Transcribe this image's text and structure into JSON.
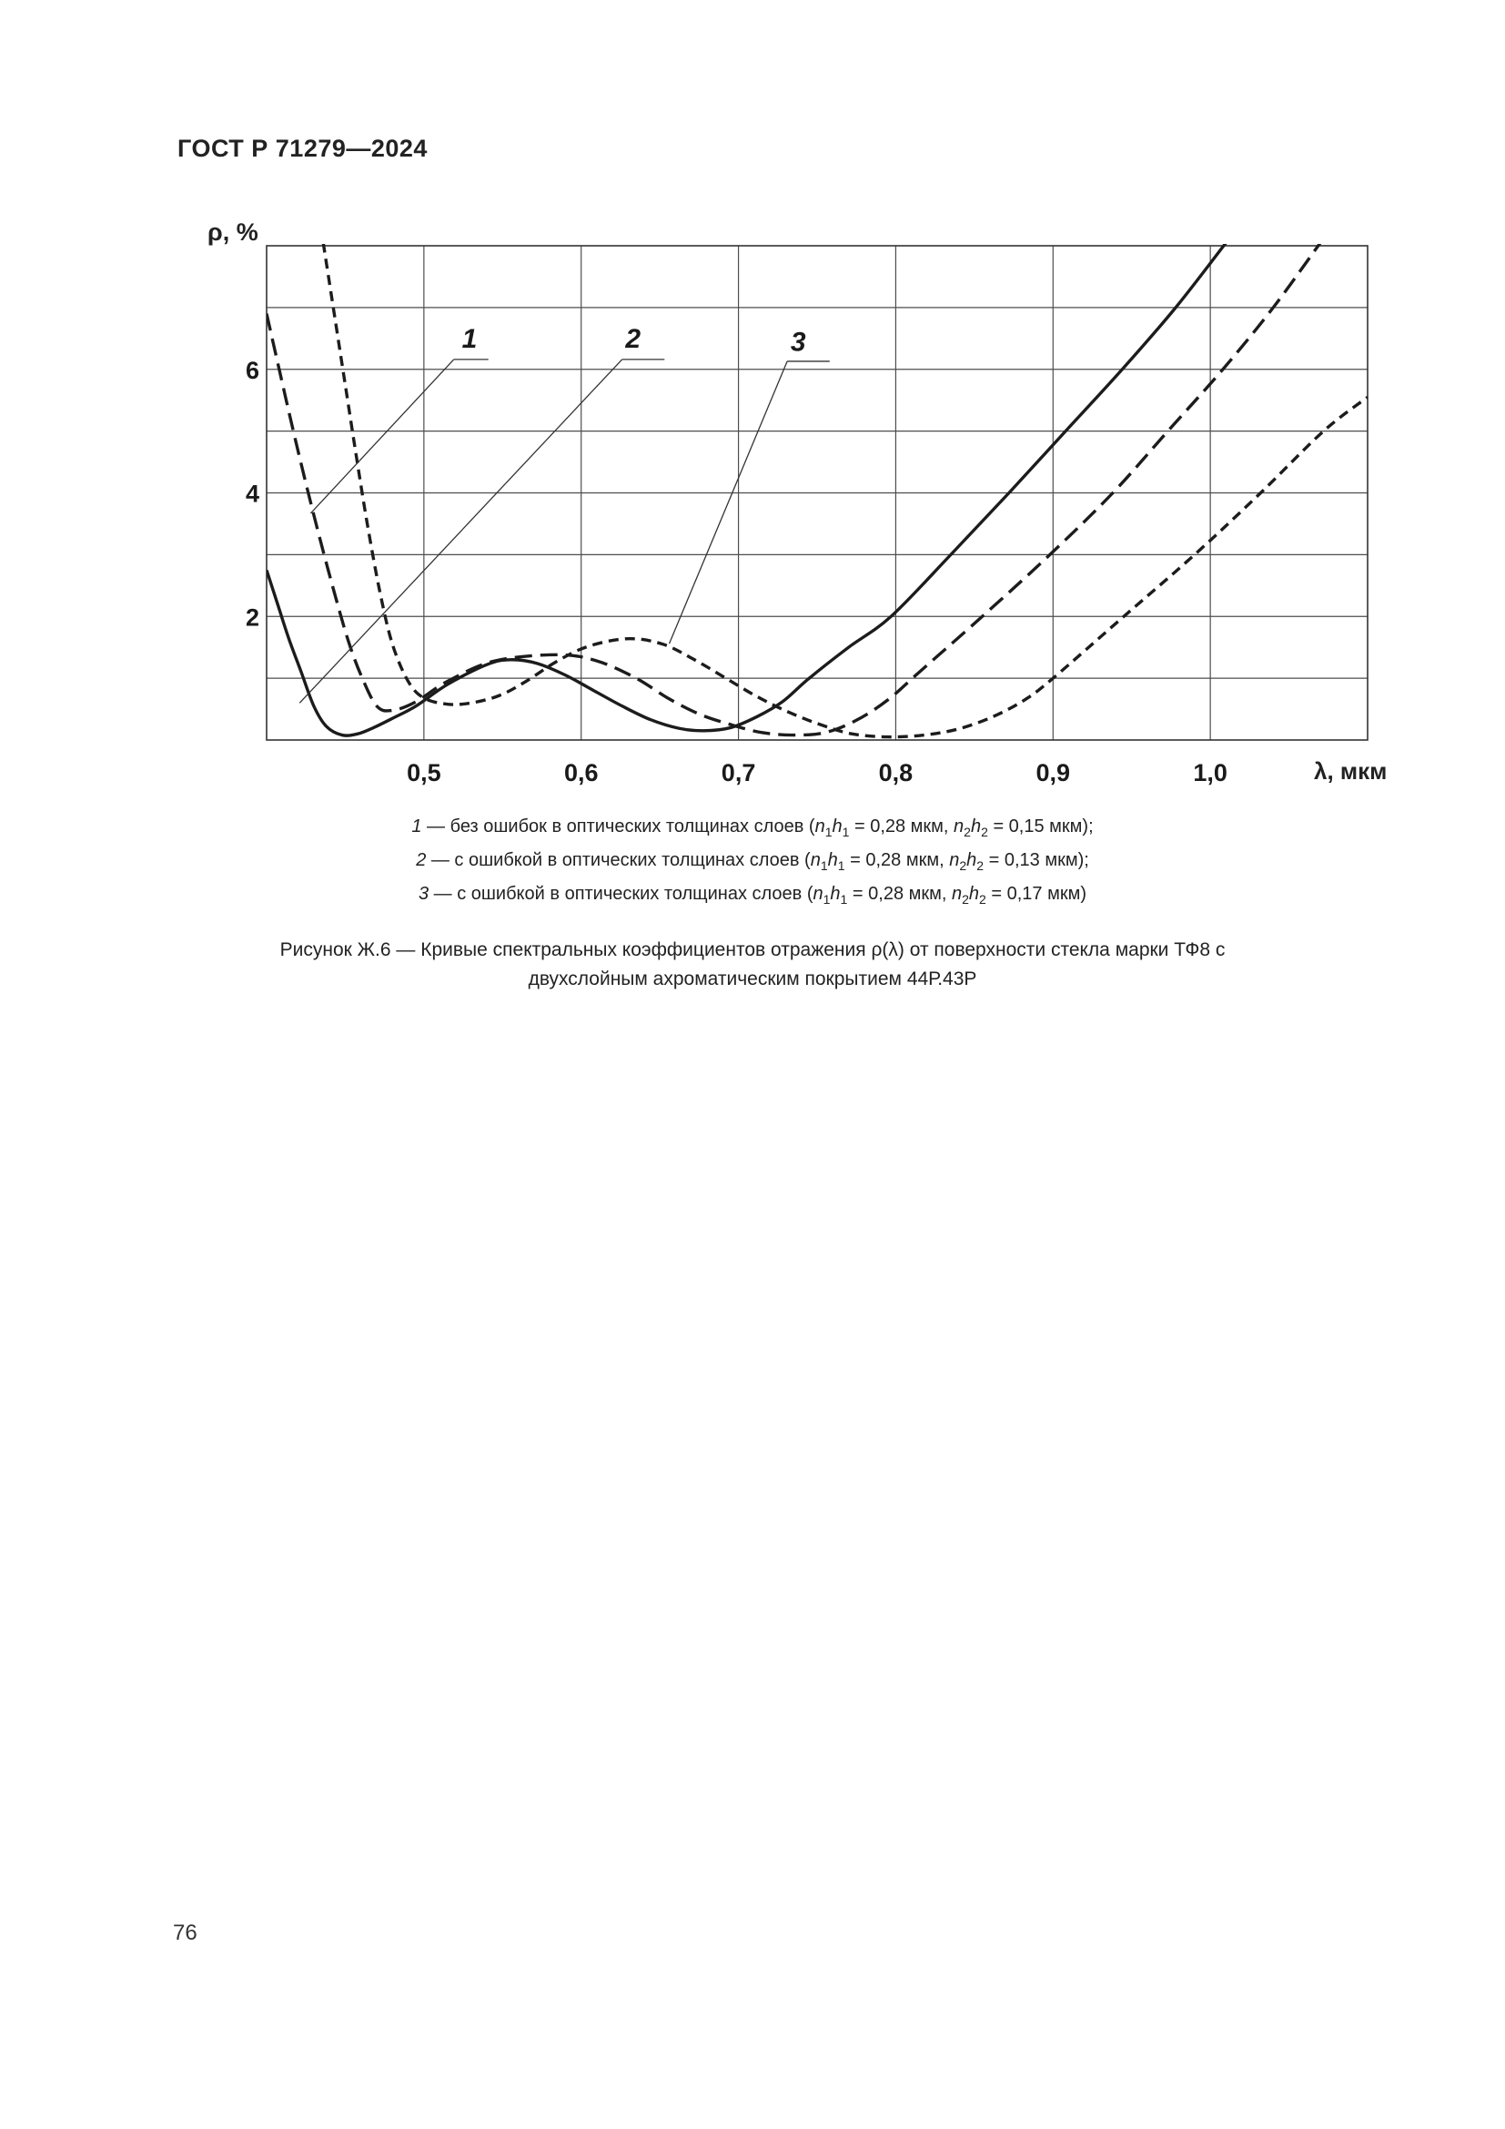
{
  "header": {
    "title": "ГОСТ Р 71279—2024"
  },
  "page_number": "76",
  "caption": {
    "line1": "Рисунок Ж.6 — Кривые спектральных коэффициентов отражения ρ(λ) от поверхности стекла марки ТФ8 с",
    "line2": "двухслойным ахроматическим покрытием 44Р.43Р"
  },
  "legend": {
    "line1_html": "<i>1</i> — без ошибок в оптических толщинах слоев (<i>n</i><sub>1</sub><i>h</i><sub>1</sub> = 0,28 мкм, <i>n</i><sub>2</sub><i>h</i><sub>2</sub> = 0,15 мкм);",
    "line2_html": "<i>2</i> — с ошибкой в оптических толщинах слоев (<i>n</i><sub>1</sub><i>h</i><sub>1</sub> = 0,28 мкм, <i>n</i><sub>2</sub><i>h</i><sub>2</sub> = 0,13 мкм);",
    "line3_html": "<i>3</i> — с ошибкой в оптических толщинах слоев (<i>n</i><sub>1</sub><i>h</i><sub>1</sub> = 0,28 мкм, <i>n</i><sub>2</sub><i>h</i><sub>2</sub> = 0,17 мкм)"
  },
  "chart_data": {
    "type": "line",
    "title": "",
    "xlabel": "λ, мкм",
    "ylabel": "ρ, %",
    "xlim": [
      0.4,
      1.1
    ],
    "ylim": [
      0,
      8
    ],
    "grid": true,
    "x_gridlines": [
      0.5,
      0.6,
      0.7,
      0.8,
      0.9,
      1.0
    ],
    "y_gridlines": [
      1,
      2,
      3,
      4,
      5,
      6,
      7
    ],
    "x_ticks": [
      {
        "v": 0.5,
        "label": "0,5"
      },
      {
        "v": 0.6,
        "label": "0,6"
      },
      {
        "v": 0.7,
        "label": "0,7"
      },
      {
        "v": 0.8,
        "label": "0,8"
      },
      {
        "v": 0.9,
        "label": "0,9"
      },
      {
        "v": 1.0,
        "label": "1,0"
      }
    ],
    "y_ticks": [
      {
        "v": 2,
        "label": "2"
      },
      {
        "v": 4,
        "label": "4"
      },
      {
        "v": 6,
        "label": "6"
      }
    ],
    "line_color": "#1c1c1c",
    "grid_color": "#4d4d4d",
    "series": [
      {
        "name": "1",
        "description": "без ошибок (n1h1=0,28 мкм, n2h2=0,15 мкм)",
        "dash": "19 9",
        "points": [
          [
            0.4,
            6.9
          ],
          [
            0.408,
            6.0
          ],
          [
            0.417,
            5.0
          ],
          [
            0.426,
            4.05
          ],
          [
            0.435,
            3.15
          ],
          [
            0.444,
            2.3
          ],
          [
            0.452,
            1.6
          ],
          [
            0.46,
            1.05
          ],
          [
            0.47,
            0.55
          ],
          [
            0.48,
            0.48
          ],
          [
            0.495,
            0.62
          ],
          [
            0.515,
            0.95
          ],
          [
            0.545,
            1.28
          ],
          [
            0.585,
            1.38
          ],
          [
            0.61,
            1.28
          ],
          [
            0.635,
            1.0
          ],
          [
            0.655,
            0.68
          ],
          [
            0.675,
            0.42
          ],
          [
            0.695,
            0.25
          ],
          [
            0.715,
            0.12
          ],
          [
            0.735,
            0.08
          ],
          [
            0.755,
            0.12
          ],
          [
            0.775,
            0.32
          ],
          [
            0.795,
            0.65
          ],
          [
            0.815,
            1.1
          ],
          [
            0.855,
            2.0
          ],
          [
            0.898,
            3.0
          ],
          [
            0.938,
            4.0
          ],
          [
            0.973,
            5.0
          ],
          [
            1.008,
            6.0
          ],
          [
            1.04,
            7.0
          ],
          [
            1.07,
            8.05
          ]
        ]
      },
      {
        "name": "2",
        "description": "с ошибкой (n1h1=0,28 мкм, n2h2=0,13 мкм)",
        "dash": "none",
        "points": [
          [
            0.4,
            2.75
          ],
          [
            0.407,
            2.2
          ],
          [
            0.414,
            1.65
          ],
          [
            0.422,
            1.1
          ],
          [
            0.43,
            0.55
          ],
          [
            0.438,
            0.22
          ],
          [
            0.448,
            0.08
          ],
          [
            0.458,
            0.1
          ],
          [
            0.468,
            0.2
          ],
          [
            0.48,
            0.35
          ],
          [
            0.495,
            0.55
          ],
          [
            0.515,
            0.9
          ],
          [
            0.54,
            1.22
          ],
          [
            0.555,
            1.3
          ],
          [
            0.572,
            1.24
          ],
          [
            0.59,
            1.05
          ],
          [
            0.608,
            0.8
          ],
          [
            0.626,
            0.55
          ],
          [
            0.644,
            0.33
          ],
          [
            0.662,
            0.19
          ],
          [
            0.678,
            0.15
          ],
          [
            0.695,
            0.2
          ],
          [
            0.712,
            0.38
          ],
          [
            0.728,
            0.62
          ],
          [
            0.745,
            1.0
          ],
          [
            0.77,
            1.5
          ],
          [
            0.797,
            2.0
          ],
          [
            0.835,
            3.0
          ],
          [
            0.872,
            4.0
          ],
          [
            0.908,
            5.0
          ],
          [
            0.944,
            6.0
          ],
          [
            0.978,
            7.0
          ],
          [
            1.01,
            8.05
          ]
        ]
      },
      {
        "name": "3",
        "description": "с ошибкой (n1h1=0,28 мкм, n2h2=0,17 мкм)",
        "dash": "11 7",
        "points": [
          [
            0.436,
            8.05
          ],
          [
            0.443,
            6.9
          ],
          [
            0.45,
            5.75
          ],
          [
            0.457,
            4.6
          ],
          [
            0.464,
            3.5
          ],
          [
            0.472,
            2.4
          ],
          [
            0.48,
            1.55
          ],
          [
            0.49,
            0.95
          ],
          [
            0.5,
            0.68
          ],
          [
            0.515,
            0.58
          ],
          [
            0.53,
            0.6
          ],
          [
            0.548,
            0.72
          ],
          [
            0.565,
            0.95
          ],
          [
            0.585,
            1.28
          ],
          [
            0.605,
            1.52
          ],
          [
            0.63,
            1.64
          ],
          [
            0.652,
            1.55
          ],
          [
            0.672,
            1.3
          ],
          [
            0.692,
            1.0
          ],
          [
            0.712,
            0.7
          ],
          [
            0.732,
            0.45
          ],
          [
            0.752,
            0.25
          ],
          [
            0.772,
            0.1
          ],
          [
            0.795,
            0.05
          ],
          [
            0.818,
            0.08
          ],
          [
            0.84,
            0.18
          ],
          [
            0.862,
            0.38
          ],
          [
            0.882,
            0.65
          ],
          [
            0.9,
            1.0
          ],
          [
            0.945,
            2.0
          ],
          [
            0.99,
            3.0
          ],
          [
            1.032,
            4.0
          ],
          [
            1.072,
            5.0
          ],
          [
            1.1,
            5.55
          ]
        ]
      }
    ],
    "annotations": [
      {
        "label": "1",
        "tx": 0.529,
        "ty": 6.35,
        "ux1": 0.519,
        "ux2": 0.541,
        "uy": 6.16,
        "ex": 0.428,
        "ey": 3.67
      },
      {
        "label": "2",
        "tx": 0.633,
        "ty": 6.35,
        "ux1": 0.626,
        "ux2": 0.653,
        "uy": 6.16,
        "ex": 0.421,
        "ey": 0.6
      },
      {
        "label": "3",
        "tx": 0.738,
        "ty": 6.3,
        "ux1": 0.731,
        "ux2": 0.758,
        "uy": 6.13,
        "ex": 0.656,
        "ey": 1.56
      }
    ]
  }
}
